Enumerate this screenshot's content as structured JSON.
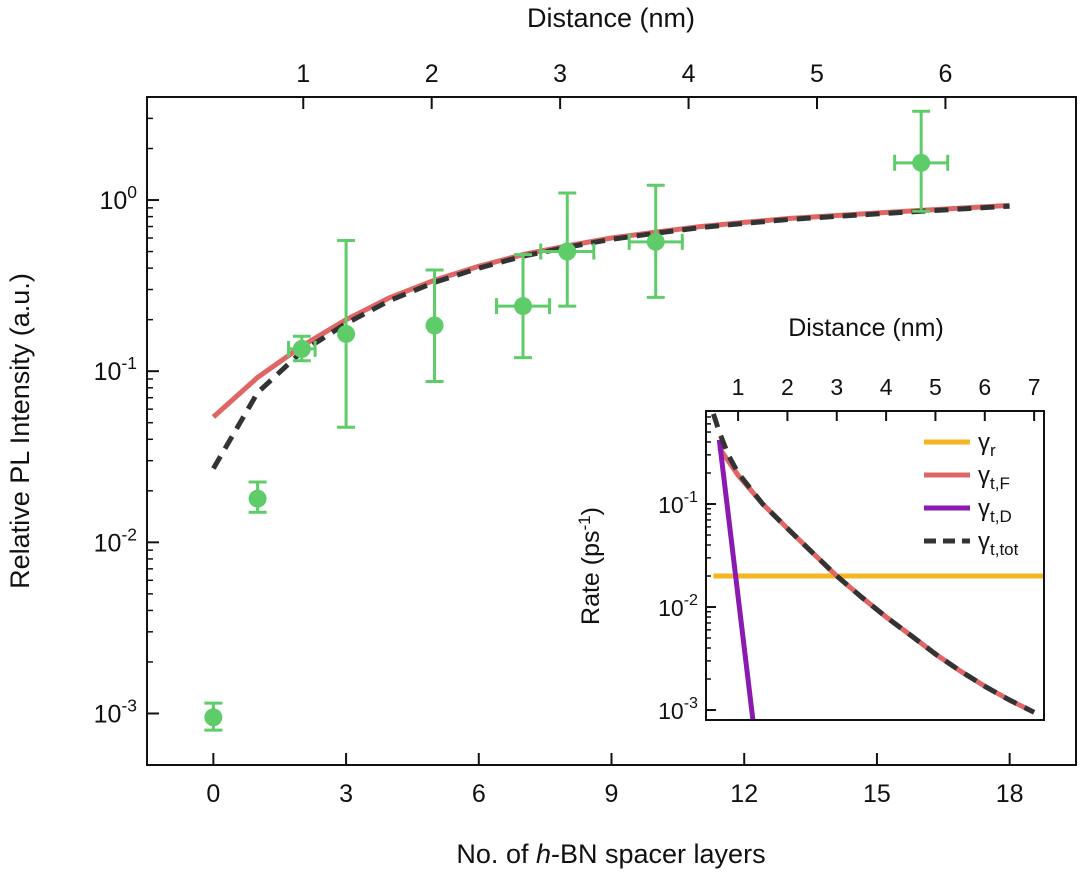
{
  "chart_data": [
    {
      "type": "scatter",
      "xlabel_prefix": "No. of ",
      "xlabel_italic": "h",
      "xlabel_suffix": "-BN spacer layers",
      "ylabel": "Relative PL Intensity (a.u.)",
      "top_xlabel": "Distance (nm)",
      "yscale": "log",
      "xlim": [
        -1.5,
        19.5
      ],
      "ylim": [
        0.0005,
        4.0
      ],
      "x_ticks": [
        0,
        3,
        6,
        9,
        12,
        15,
        18
      ],
      "y_ticks": [
        {
          "value": 0.001,
          "base": "10",
          "exp": "-3"
        },
        {
          "value": 0.01,
          "base": "10",
          "exp": "-2"
        },
        {
          "value": 0.1,
          "base": "10",
          "exp": "-1"
        },
        {
          "value": 1,
          "base": "10",
          "exp": "0"
        }
      ],
      "top_ticks": [
        {
          "value": 1,
          "label": "1"
        },
        {
          "value": 2,
          "label": "2"
        },
        {
          "value": 3,
          "label": "3"
        },
        {
          "value": 4,
          "label": "4"
        },
        {
          "value": 5,
          "label": "5"
        },
        {
          "value": 6,
          "label": "6"
        }
      ],
      "top_axis_range_nm": [
        0.3,
        6.5
      ],
      "points": [
        {
          "x": 0,
          "y": 0.00095,
          "y_lo": 0.0008,
          "y_hi": 0.00115,
          "xerr": 0
        },
        {
          "x": 1,
          "y": 0.018,
          "y_lo": 0.015,
          "y_hi": 0.0225,
          "xerr": 0
        },
        {
          "x": 2,
          "y": 0.135,
          "y_lo": 0.115,
          "y_hi": 0.16,
          "xerr": 0.3
        },
        {
          "x": 3,
          "y": 0.165,
          "y_lo": 0.047,
          "y_hi": 0.58,
          "xerr": 0
        },
        {
          "x": 5,
          "y": 0.185,
          "y_lo": 0.087,
          "y_hi": 0.39,
          "xerr": 0
        },
        {
          "x": 7,
          "y": 0.24,
          "y_lo": 0.12,
          "y_hi": 0.48,
          "xerr": 0.6
        },
        {
          "x": 8,
          "y": 0.5,
          "y_lo": 0.24,
          "y_hi": 1.1,
          "xerr": 0.6
        },
        {
          "x": 10,
          "y": 0.57,
          "y_lo": 0.27,
          "y_hi": 1.22,
          "xerr": 0.6
        },
        {
          "x": 16,
          "y": 1.65,
          "y_lo": 0.86,
          "y_hi": 3.3,
          "xerr": 0.6
        }
      ],
      "marker_color": "#5fcc6a",
      "series": [
        {
          "style": "solid",
          "color": "#e06666",
          "x": [
            0,
            1,
            2,
            3,
            4,
            5,
            6,
            7,
            8,
            9,
            10,
            11,
            12,
            13,
            14,
            15,
            16,
            17,
            18
          ],
          "y": [
            0.054,
            0.092,
            0.14,
            0.2,
            0.27,
            0.34,
            0.41,
            0.48,
            0.54,
            0.6,
            0.65,
            0.7,
            0.74,
            0.78,
            0.81,
            0.84,
            0.87,
            0.9,
            0.93
          ]
        },
        {
          "style": "dashed",
          "color": "#333333",
          "x": [
            0,
            1,
            2,
            3,
            4,
            5,
            6,
            7,
            8,
            9,
            10,
            11,
            12,
            13,
            14,
            15,
            16,
            17,
            18
          ],
          "y": [
            0.027,
            0.075,
            0.13,
            0.19,
            0.26,
            0.33,
            0.4,
            0.47,
            0.53,
            0.59,
            0.64,
            0.69,
            0.73,
            0.77,
            0.8,
            0.83,
            0.86,
            0.89,
            0.92
          ]
        }
      ]
    },
    {
      "type": "line",
      "ylabel_main": "Rate (ps",
      "ylabel_exp": "-1",
      "ylabel_end": ")",
      "top_xlabel": "Distance (nm)",
      "yscale": "log",
      "xlim": [
        0.35,
        7.2
      ],
      "ylim": [
        0.0008,
        0.8
      ],
      "x_ticks": [
        1,
        2,
        3,
        4,
        5,
        6,
        7
      ],
      "y_ticks": [
        {
          "value": 0.001,
          "base": "10",
          "exp": "-3"
        },
        {
          "value": 0.01,
          "base": "10",
          "exp": "-2"
        },
        {
          "value": 0.1,
          "base": "10",
          "exp": "-1"
        }
      ],
      "legend_position": "top-right",
      "series": [
        {
          "name_main": "γ",
          "name_sub": "r",
          "color": "#f5b422",
          "style": "solid",
          "x": [
            0.5,
            7.2
          ],
          "y": [
            0.02,
            0.02
          ]
        },
        {
          "name_main": "γ",
          "name_sub": "t,F",
          "color": "#e06666",
          "style": "solid",
          "x": [
            0.62,
            1.0,
            1.5,
            2.0,
            2.5,
            3.0,
            3.5,
            4.0,
            4.5,
            5.0,
            5.5,
            6.0,
            6.5,
            7.0
          ],
          "y": [
            0.35,
            0.19,
            0.1,
            0.058,
            0.034,
            0.02,
            0.0125,
            0.008,
            0.0053,
            0.0035,
            0.0024,
            0.0017,
            0.00125,
            0.00095
          ]
        },
        {
          "name_main": "γ",
          "name_sub": "t,D",
          "color": "#8a1ab0",
          "style": "solid",
          "x": [
            0.62,
            1.3
          ],
          "y": [
            0.42,
            0.0008
          ]
        },
        {
          "name_main": "γ",
          "name_sub": "t,tot",
          "color": "#333333",
          "style": "dashed",
          "x": [
            0.5,
            0.62,
            0.8,
            1.0,
            1.5,
            2.0,
            2.5,
            3.0,
            3.5,
            4.0,
            4.5,
            5.0,
            5.5,
            6.0,
            6.5,
            7.0
          ],
          "y": [
            0.75,
            0.5,
            0.3,
            0.2,
            0.1,
            0.058,
            0.034,
            0.02,
            0.0125,
            0.008,
            0.0053,
            0.0035,
            0.0024,
            0.0017,
            0.00125,
            0.00095
          ]
        }
      ]
    }
  ]
}
